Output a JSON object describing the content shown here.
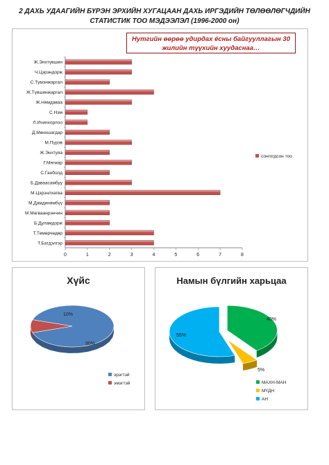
{
  "header": {
    "line1": "2 ДАХЬ УДААГИЙН БҮРЭН ЭРХИЙН ХУГАЦААН ДАХЬ ИРГЭДИЙН ТӨЛӨӨЛӨГЧДИЙН",
    "line2": "СТАТИСТИК ТОО МЭДЭЭЛЭЛ (1996-2000 он)"
  },
  "colors": {
    "bar": "#c0504d",
    "male": "#4f81bd",
    "female": "#c0504d",
    "makh_man": "#00b050",
    "mudn": "#ffc000",
    "an": "#00b0f0"
  },
  "chart_data": [
    {
      "type": "bar",
      "orientation": "horizontal",
      "title": "Нутгийн өөрөө удирдах ёсны байгууллагын 30 жилийн түүхийн хуудаснаа…",
      "categories": [
        "Ж.Энхтүвшин",
        "Ч.Цэрэндорж",
        "С.Түмэнжаргал",
        "Ж.Түвшинжаргал",
        "Ж.Нямдаваа",
        "С.Нэм",
        "Л.Ичинхорлоо",
        "Д.Мөнхшагдар",
        "М.Пүрэв",
        "Ж.Энхтуяа",
        "Г.Мягмар",
        "С.Ганболд",
        "Б.Даваасамбуу",
        "М.Цэрэнлхагва",
        "М.Дамдинямбүү",
        "М.Магваанрэнчин",
        "Б.Дуламдорж",
        "Т.Төмөрчөдөр",
        "Т.Батдэлгэр"
      ],
      "series": [
        {
          "name": "сонгогдсон тоо",
          "values": [
            3,
            3,
            2,
            4,
            3,
            1,
            1,
            2,
            3,
            2,
            3,
            2,
            3,
            7,
            2,
            2,
            2,
            4,
            4
          ]
        }
      ],
      "xlim": [
        0,
        8
      ],
      "xticks": [
        0,
        1,
        2,
        3,
        4,
        5,
        6,
        7,
        8
      ],
      "legend_position": "right",
      "grid": false
    },
    {
      "type": "pie",
      "title": "Хүйс",
      "labels": [
        "эрэгтэй",
        "эмэгтэй"
      ],
      "values": [
        90,
        10
      ],
      "data_labels": [
        "90%",
        "10%"
      ],
      "legend_position": "bottom-right"
    },
    {
      "type": "pie",
      "title": "Намын бүлгийн харьцаа",
      "labels": [
        "МАХН-МАН",
        "МҮДН",
        "АН"
      ],
      "values": [
        40,
        5,
        55
      ],
      "data_labels": [
        "40%",
        "5%",
        "55%"
      ],
      "exploded": true,
      "legend_position": "bottom-right"
    }
  ]
}
